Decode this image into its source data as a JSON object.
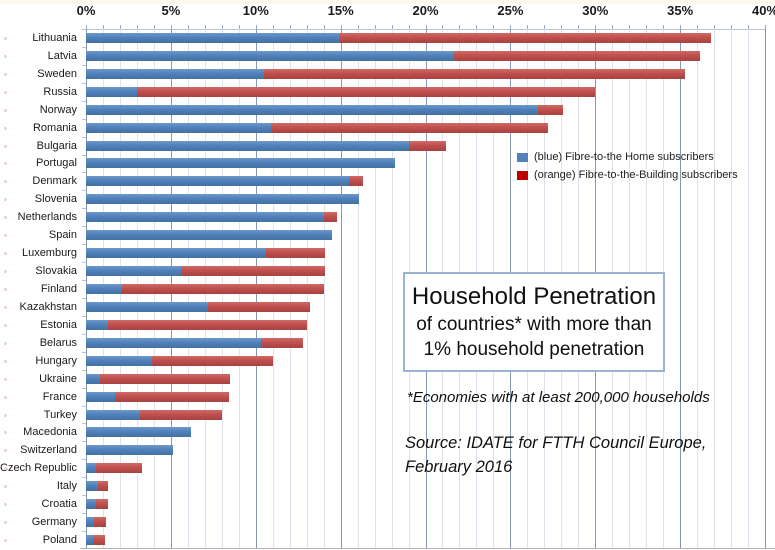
{
  "chart_data": {
    "type": "bar",
    "orientation": "horizontal",
    "stacked": true,
    "title": "Household Penetration",
    "subtitle_lines": [
      "of countries* with more than",
      "1% household penetration"
    ],
    "footnote": "*Economies with at least 200,000 households",
    "source_lines": [
      "Source: IDATE for FTTH Council Europe,",
      "February 2016"
    ],
    "x_axis": {
      "min": 0,
      "max": 40,
      "unit": "%",
      "minor_tick_step": 1,
      "major_tick_step": 5,
      "tick_labels": [
        "0%",
        "5%",
        "10%",
        "15%",
        "20%",
        "25%",
        "30%",
        "35%",
        "40%"
      ]
    },
    "grid": "vertical, minor every 1%, major every 5%",
    "legend_position": "inside-right, upper area",
    "legend": [
      {
        "label": "(blue) Fibre-to-the Home subscribers",
        "color": "#4f81bd"
      },
      {
        "label": "(orange) Fibre-to-the-Building subscribers",
        "color": "#c00000"
      }
    ],
    "categories": [
      "Lithuania",
      "Latvia",
      "Sweden",
      "Russia",
      "Norway",
      "Romania",
      "Bulgaria",
      "Portugal",
      "Denmark",
      "Slovenia",
      "Netherlands",
      "Spain",
      "Luxemburg",
      "Slovakia",
      "Finland",
      "Kazakhstan",
      "Estonia",
      "Belarus",
      "Hungary",
      "Ukraine",
      "France",
      "Turkey",
      "Macedonia",
      "Switzerland",
      "Czech Republic",
      "Italy",
      "Croatia",
      "Germany",
      "Poland"
    ],
    "series": [
      {
        "name": "Fibre-to-the-Home subscribers",
        "color": "#4f81bd",
        "values": [
          14.9,
          21.7,
          10.5,
          3.0,
          26.6,
          10.9,
          19.0,
          18.2,
          15.5,
          16.1,
          14.0,
          14.5,
          10.6,
          5.6,
          2.1,
          7.2,
          1.3,
          10.3,
          3.9,
          0.8,
          1.7,
          3.2,
          6.2,
          5.1,
          0.6,
          0.7,
          0.6,
          0.5,
          0.4
        ]
      },
      {
        "name": "Fibre-to-the-Building subscribers",
        "color": "#c0504d",
        "values": [
          21.9,
          14.5,
          24.8,
          27.0,
          1.5,
          16.3,
          2.2,
          0,
          0.8,
          0,
          0.8,
          0,
          3.5,
          8.5,
          11.9,
          6.0,
          11.7,
          2.5,
          7.1,
          7.7,
          6.7,
          4.8,
          0,
          0,
          2.7,
          0.6,
          0.7,
          0.7,
          0.7
        ]
      }
    ],
    "totals": [
      36.8,
      36.2,
      35.3,
      30.0,
      28.1,
      27.2,
      21.2,
      18.2,
      16.3,
      16.1,
      14.8,
      14.5,
      14.1,
      14.1,
      14.0,
      13.2,
      13.0,
      12.8,
      11.0,
      8.5,
      8.4,
      8.0,
      6.2,
      5.1,
      3.3,
      1.3,
      1.3,
      1.2,
      1.1
    ]
  },
  "colors": {
    "ftth_bar": "#4f81bd",
    "fttb_bar": "#c0504d",
    "legend_red_swatch": "#c00000",
    "minor_gridline": "#dde3ed",
    "major_gridline": "#8497b5",
    "title_box_border": "#9ab3d5",
    "text": "#101010"
  }
}
